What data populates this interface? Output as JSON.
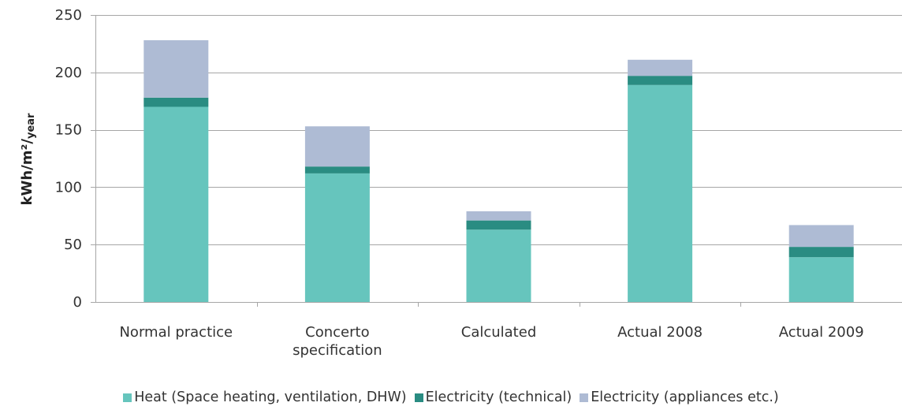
{
  "chart_data": {
    "type": "bar",
    "stacked": true,
    "categories": [
      "Normal practice",
      "Concerto specification",
      "Calculated",
      "Actual 2008",
      "Actual 2009"
    ],
    "series": [
      {
        "name": "Heat (Space heating, ventilation, DHW)",
        "color": "#66c5bd",
        "values": [
          170,
          112,
          63,
          189,
          39
        ]
      },
      {
        "name": "Electricity (technical)",
        "color": "#2a8c82",
        "values": [
          8,
          6,
          8,
          8,
          9
        ]
      },
      {
        "name": "Electricity (appliances etc.)",
        "color": "#aebbd4",
        "values": [
          50,
          35,
          8,
          14,
          19
        ]
      }
    ],
    "title": "",
    "xlabel": "",
    "ylabel": "kWh/m²/",
    "ylabel_sub": "year",
    "ylim": [
      0,
      250
    ],
    "yticks": [
      0,
      50,
      100,
      150,
      200,
      250
    ],
    "grid": true,
    "legend_position": "bottom"
  }
}
